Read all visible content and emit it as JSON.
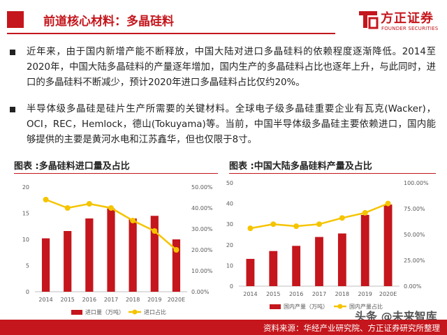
{
  "header": {
    "title": "前道核心材料：多晶硅料",
    "logo_cn": "方正证券",
    "logo_en": "FOUNDER SECURITIES"
  },
  "bullets": [
    "近年来，由于国内新增产能不断释放，中国大陆对进口多晶硅料的依赖程度逐渐降低。2014至2020年，中国大陆多晶硅料的产量逐年增加，国内生产的多晶硅料占比也逐年上升，与此同时，进口的多晶硅料不断减少，预计2020年进口多晶硅料占比仅约20%。",
    "半导体级多晶硅是硅片生产所需要的关键材料。全球电子级多晶硅重要企业有瓦克(Wacker)，OCI，REC，Hemlock，德山(Tokuyama)等。当前，中国半导体级多晶硅主要依赖进口，国内能够提供的主要是黄河水电和江苏鑫华，但也仅限于8寸。"
  ],
  "colors": {
    "bar": "#c4161c",
    "line": "#f5c400",
    "brand": "#c4161c"
  },
  "chart_data": [
    {
      "type": "bar",
      "title": "图表 :多晶硅料进口量及占比",
      "categories": [
        "2014",
        "2015",
        "2016",
        "2017",
        "2018",
        "2019",
        "2020E"
      ],
      "left_axis": {
        "ticks": [
          "0",
          "5",
          "10",
          "15",
          "20"
        ],
        "ylim": [
          0,
          20
        ]
      },
      "right_axis": {
        "ticks": [
          "0.00%",
          "10.00%",
          "20.00%",
          "30.00%",
          "40.00%",
          "50.00%"
        ],
        "ylim": [
          0,
          50
        ]
      },
      "series": [
        {
          "name": "进口量（万吨）",
          "kind": "bar",
          "axis": "left",
          "values": [
            10.2,
            11.6,
            14.0,
            15.9,
            14.0,
            14.5,
            10.0
          ]
        },
        {
          "name": "进口占比",
          "kind": "line",
          "axis": "right",
          "values": [
            44,
            40,
            42,
            40,
            34,
            29,
            20
          ]
        }
      ],
      "grid": false,
      "legend": "bottom"
    },
    {
      "type": "bar",
      "title": "图表 :中国大陆多晶硅料产量及占比",
      "categories": [
        "2014",
        "2015",
        "2016",
        "2017",
        "2018",
        "2019",
        "2020E"
      ],
      "left_axis": {
        "ticks": [
          "0",
          "10",
          "20",
          "30",
          "40",
          "50"
        ],
        "ylim": [
          0,
          50
        ]
      },
      "right_axis": {
        "ticks": [
          "0.00%",
          "25.00%",
          "50.00%",
          "75.00%",
          "100.00%"
        ],
        "ylim": [
          0,
          100
        ]
      },
      "series": [
        {
          "name": "国内产量（万吨）",
          "kind": "bar",
          "axis": "left",
          "values": [
            13.2,
            17.0,
            19.5,
            23.8,
            25.5,
            34.5,
            39.5
          ]
        },
        {
          "name": "国内产量占比",
          "kind": "line",
          "axis": "right",
          "values": [
            56,
            60,
            58,
            60,
            66,
            71,
            80
          ]
        }
      ],
      "grid": false,
      "legend": "bottom"
    }
  ],
  "footer": {
    "source": "资料来源：华经产业研究院、方正证券研究所整理"
  },
  "watermark": "头条 @未来智库"
}
